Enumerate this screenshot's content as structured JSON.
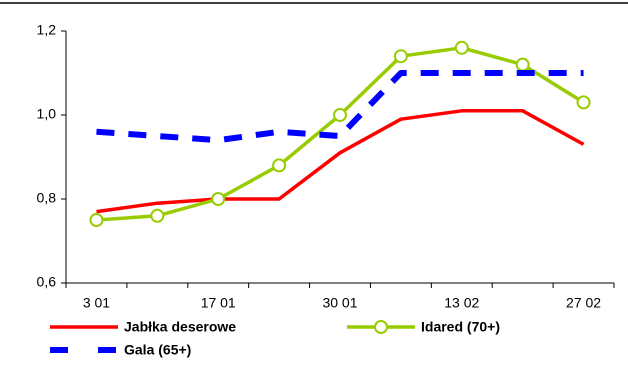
{
  "chart_data": {
    "type": "line",
    "categories": [
      "3 01",
      null,
      "17 01",
      null,
      "30 01",
      null,
      "13 02",
      null,
      "27 02"
    ],
    "series": [
      {
        "name": "Jabłka deserowe",
        "color": "#ff0000",
        "values": [
          0.77,
          0.79,
          0.8,
          0.8,
          0.91,
          0.99,
          1.01,
          1.01,
          0.93
        ]
      },
      {
        "name": "Idared (70+)",
        "color": "#99cc00",
        "values": [
          0.75,
          0.76,
          0.8,
          0.88,
          1.0,
          1.14,
          1.16,
          1.12,
          1.03
        ]
      },
      {
        "name": "Gala (65+)",
        "color": "#0000ff",
        "values": [
          0.96,
          0.95,
          0.94,
          0.96,
          0.95,
          1.1,
          1.1,
          1.1,
          1.1
        ]
      }
    ],
    "ylim": [
      0.6,
      1.2
    ],
    "yticks": [
      {
        "value": 0.6,
        "label": "0,6"
      },
      {
        "value": 0.8,
        "label": "0,8"
      },
      {
        "value": 1.0,
        "label": "1,0"
      },
      {
        "value": 1.2,
        "label": "1,2"
      }
    ]
  }
}
